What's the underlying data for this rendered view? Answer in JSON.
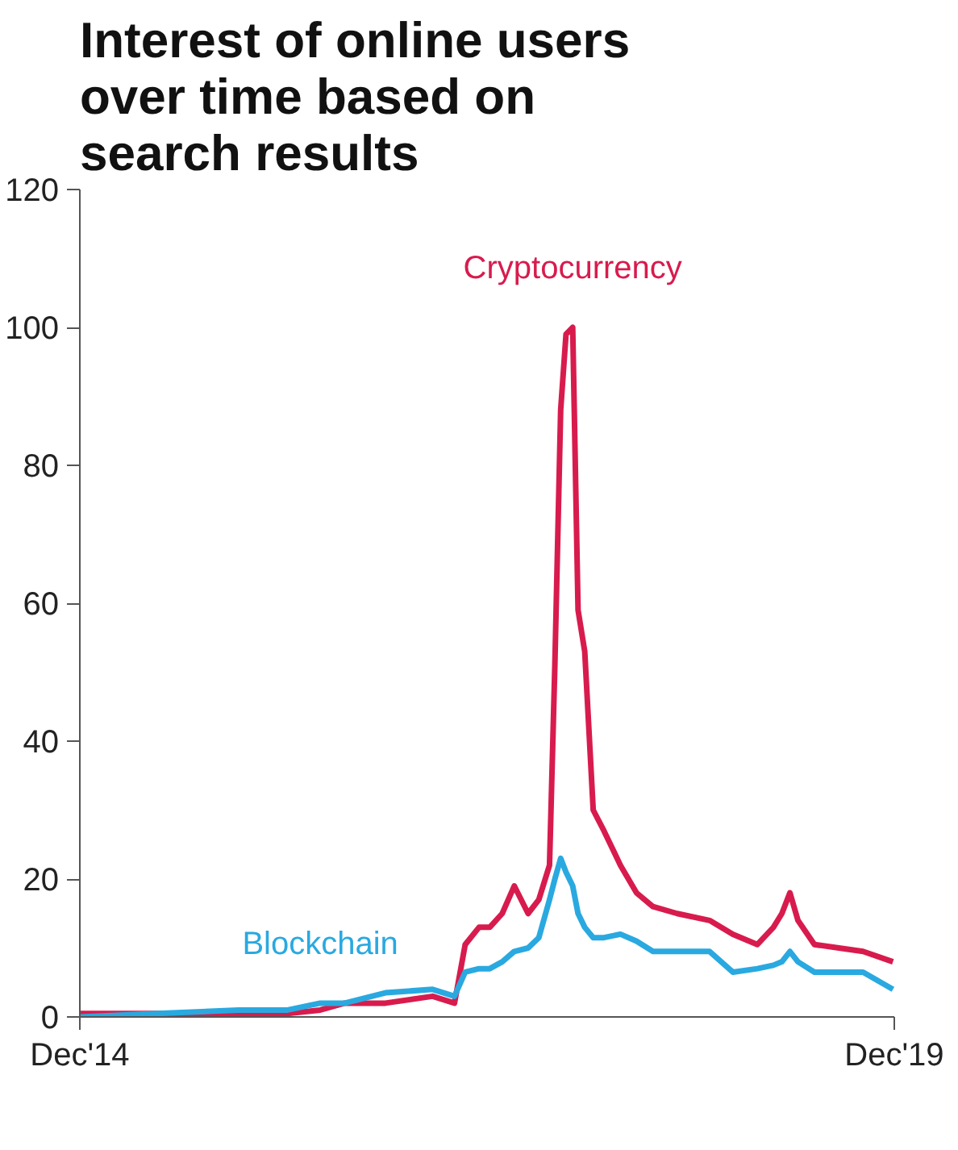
{
  "chart_data": {
    "type": "line",
    "title": "Interest of online users over time based on search results",
    "x": [
      "2014-12-01",
      "2015-05-23",
      "2015-11-22",
      "2016-03-11",
      "2016-05-23",
      "2016-07-17",
      "2016-10-16",
      "2017-01-30",
      "2017-03-20",
      "2017-04-13",
      "2017-05-14",
      "2017-06-07",
      "2017-07-05",
      "2017-08-01",
      "2017-09-01",
      "2017-09-25",
      "2017-10-19",
      "2017-10-31",
      "2017-11-13",
      "2017-11-25",
      "2017-12-10",
      "2017-12-22",
      "2018-01-06",
      "2018-01-25",
      "2018-02-18",
      "2018-03-27",
      "2018-05-02",
      "2018-06-08",
      "2018-08-01",
      "2018-10-13",
      "2018-12-04",
      "2019-01-28",
      "2019-03-05",
      "2019-03-24",
      "2019-04-11",
      "2019-04-29",
      "2019-06-05",
      "2019-07-30",
      "2019-09-22",
      "2019-11-28"
    ],
    "series": [
      {
        "name": "Cryptocurrency",
        "color": "#d81b4d",
        "values": [
          0.5,
          0.5,
          0.5,
          0.5,
          1,
          2,
          2,
          3,
          2,
          10.5,
          13,
          13,
          15,
          19,
          15,
          17,
          22,
          51,
          88,
          99,
          100,
          59,
          53,
          30,
          27,
          22,
          18,
          16,
          15,
          14,
          12,
          10.5,
          13,
          15,
          18,
          14,
          10.5,
          10,
          9.5,
          8
        ]
      },
      {
        "name": "Blockchain",
        "color": "#29a9e0",
        "values": [
          0,
          0.5,
          1,
          1,
          2,
          2,
          3.5,
          4,
          3,
          6.5,
          7,
          7,
          8,
          9.5,
          10,
          11.5,
          17,
          20,
          23,
          21,
          19,
          15,
          13,
          11.5,
          11.5,
          12,
          11,
          9.5,
          9.5,
          9.5,
          6.5,
          7,
          7.5,
          8,
          9.5,
          8,
          6.5,
          6.5,
          6.5,
          4
        ]
      }
    ],
    "xlim": [
      "2014-12-01",
      "2019-12-01"
    ],
    "xticks": [
      {
        "value": "2014-12-01",
        "label": "Dec'14"
      },
      {
        "value": "2019-12-01",
        "label": "Dec'19"
      }
    ],
    "ylim": [
      0,
      120
    ],
    "yticks": [
      0,
      20,
      40,
      60,
      80,
      100,
      120
    ],
    "grid": false,
    "marker": "none",
    "line_style": "solid"
  }
}
